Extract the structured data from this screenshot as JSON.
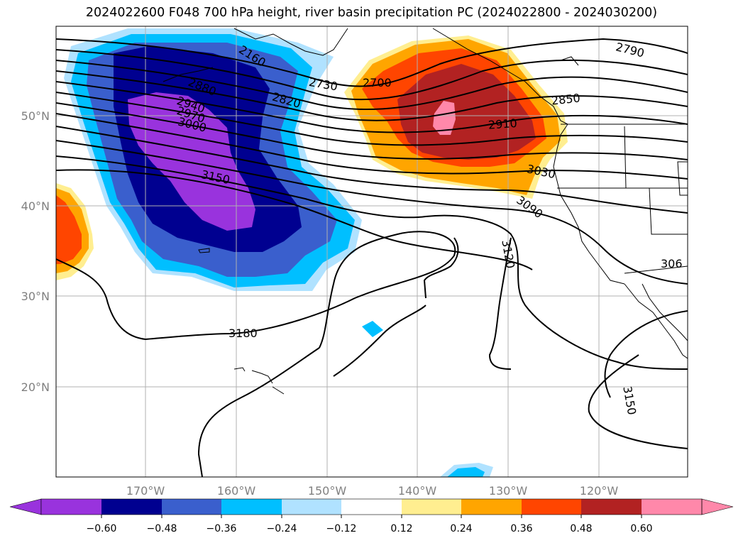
{
  "title": "2024022600 F048 700 hPa height, river basin precipitation PC (2024022800 - 2024030200)",
  "lon_labels": [
    "170°W",
    "160°W",
    "150°W",
    "140°W",
    "130°W",
    "120°W"
  ],
  "lat_labels": [
    "50°N",
    "40°N",
    "30°N",
    "20°N"
  ],
  "contour_labels": [
    "2160",
    "2880",
    "2940",
    "2970",
    "3000",
    "3150",
    "2820",
    "2730",
    "2700",
    "2790",
    "2850",
    "2910",
    "3030",
    "3090",
    "3120",
    "306",
    "3180",
    "3150"
  ],
  "colorbar": {
    "ticks": [
      "−0.60",
      "−0.48",
      "−0.36",
      "−0.24",
      "−0.12",
      "0.12",
      "0.24",
      "0.36",
      "0.48",
      "0.60"
    ],
    "colors": [
      "#9933dd",
      "#000090",
      "#3a5fcd",
      "#00bfff",
      "#b0e2ff",
      "#ffffff",
      "#ffee90",
      "#ffa500",
      "#ff4500",
      "#b22222",
      "#ff88aa",
      "#ff88aa"
    ]
  }
}
